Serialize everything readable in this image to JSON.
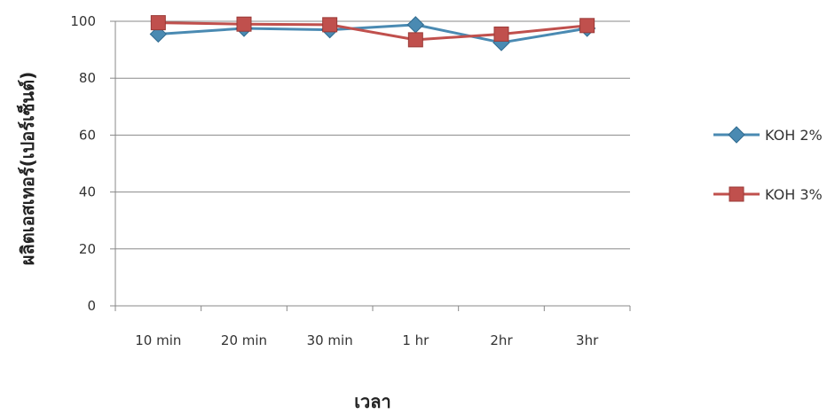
{
  "chart_data": {
    "type": "line",
    "categories": [
      "10 min",
      "20 min",
      "30 min",
      "1 hr",
      "2hr",
      "3hr"
    ],
    "series": [
      {
        "name": "KOH 2%",
        "values": [
          95.5,
          97.5,
          97.0,
          98.8,
          92.5,
          97.5
        ],
        "color": "#4A8AB2",
        "marker": "diamond"
      },
      {
        "name": "KOH 3%",
        "values": [
          99.5,
          99.0,
          98.8,
          93.5,
          95.5,
          98.5
        ],
        "color": "#C0504D",
        "marker": "square"
      }
    ],
    "ylim": [
      0,
      100
    ],
    "yticks": [
      0,
      20,
      40,
      60,
      80,
      100
    ],
    "xlabel": "เวลา",
    "ylabel": "ผลิตเอสเทอร์(เปอร์เซ็นต์)",
    "grid": true,
    "legend": "right"
  }
}
